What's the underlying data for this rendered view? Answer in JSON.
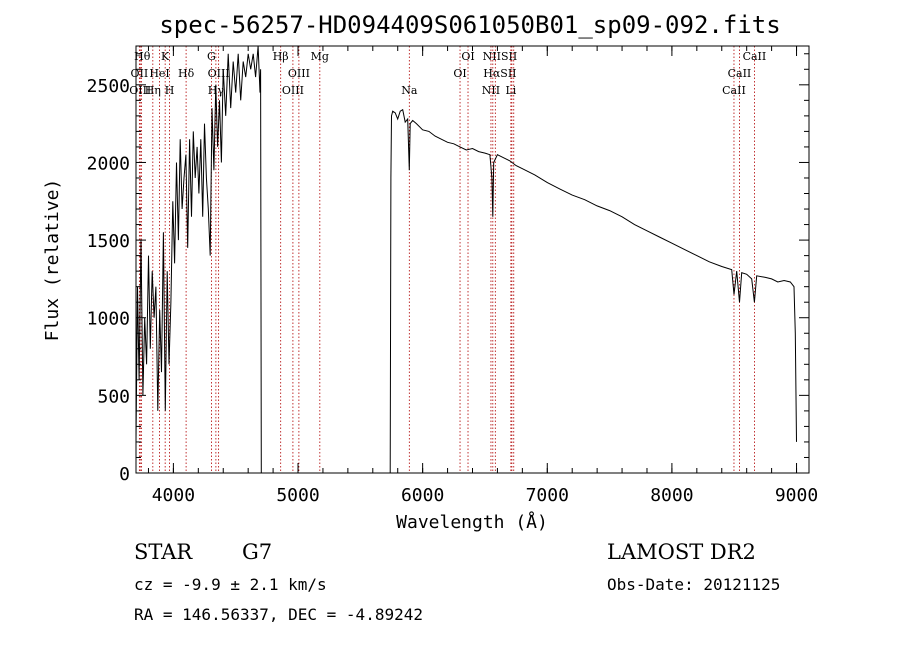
{
  "colors": {
    "spectrum": "#000000",
    "line_marker": "#b00000",
    "background": "#ffffff"
  },
  "chart_data": {
    "type": "line",
    "title": "spec-56257-HD094409S061050B01_sp09-092.fits",
    "xlabel": "Wavelength (Å)",
    "ylabel": "Flux (relative)",
    "xlim": [
      3700,
      9100
    ],
    "ylim": [
      0,
      2750
    ],
    "x_ticks": [
      "4000",
      "5000",
      "6000",
      "7000",
      "8000",
      "9000"
    ],
    "y_ticks": [
      "0",
      "500",
      "1000",
      "1500",
      "2000",
      "2500"
    ],
    "grid": false,
    "series": [
      {
        "x": [
          3700,
          3712,
          3725,
          3740,
          3755,
          3770,
          3785,
          3800,
          3815,
          3830,
          3845,
          3860,
          3875,
          3890,
          3905,
          3920,
          3935,
          3950,
          3965,
          3980,
          3995,
          4010,
          4025,
          4040,
          4055,
          4070,
          4085,
          4100,
          4115,
          4130,
          4145,
          4160,
          4175,
          4190,
          4205,
          4220,
          4235,
          4250,
          4265,
          4280,
          4295,
          4310,
          4325,
          4340,
          4355,
          4370,
          4385,
          4400,
          4420,
          4440,
          4460,
          4480,
          4500,
          4520,
          4540,
          4560,
          4580,
          4600,
          4620,
          4640,
          4660,
          4680,
          4695,
          4700,
          4705,
          5740,
          5745,
          5750,
          5760,
          5780,
          5800,
          5820,
          5840,
          5860,
          5880,
          5893,
          5900,
          5920,
          5950,
          6000,
          6050,
          6100,
          6150,
          6200,
          6250,
          6300,
          6350,
          6400,
          6450,
          6500,
          6540,
          6556,
          6563,
          6570,
          6600,
          6650,
          6700,
          6750,
          6800,
          6900,
          7000,
          7100,
          7200,
          7300,
          7400,
          7500,
          7600,
          7700,
          7800,
          7900,
          8000,
          8100,
          8200,
          8300,
          8400,
          8480,
          8498,
          8520,
          8542,
          8560,
          8600,
          8640,
          8662,
          8680,
          8750,
          8800,
          8850,
          8900,
          8950,
          8980,
          8990,
          9000
        ],
        "y": [
          200,
          1200,
          600,
          1500,
          500,
          1000,
          700,
          1400,
          800,
          1300,
          1000,
          1200,
          400,
          1050,
          650,
          1550,
          400,
          1300,
          700,
          1100,
          1750,
          1350,
          2000,
          1500,
          2150,
          1700,
          1900,
          2050,
          1450,
          2150,
          1650,
          2200,
          1900,
          2100,
          1800,
          2150,
          1650,
          2250,
          1900,
          1700,
          1400,
          2350,
          1950,
          2500,
          2100,
          2400,
          2000,
          2600,
          2300,
          2700,
          2350,
          2650,
          2450,
          2700,
          2400,
          2650,
          2550,
          2700,
          2600,
          2700,
          2550,
          2750,
          2450,
          2600,
          0,
          0,
          1900,
          2300,
          2330,
          2320,
          2280,
          2330,
          2340,
          2260,
          2280,
          1950,
          2250,
          2270,
          2250,
          2210,
          2200,
          2170,
          2150,
          2130,
          2120,
          2100,
          2080,
          2090,
          2070,
          2060,
          2050,
          1900,
          1650,
          2000,
          2050,
          2030,
          2010,
          1980,
          1960,
          1920,
          1870,
          1830,
          1790,
          1760,
          1720,
          1690,
          1650,
          1600,
          1560,
          1520,
          1480,
          1440,
          1400,
          1360,
          1330,
          1310,
          1150,
          1300,
          1100,
          1290,
          1280,
          1250,
          1100,
          1270,
          1260,
          1250,
          1230,
          1240,
          1230,
          1200,
          900,
          200
        ]
      }
    ],
    "lines": [
      {
        "upper": [
          "Hθ",
          "OII",
          "OIII"
        ],
        "wavelengths": [
          3727,
          3734,
          3745
        ]
      },
      {
        "upper": [
          "K",
          "HeI",
          "Hη"
        ],
        "wavelengths": [
          3934,
          3889,
          3835
        ]
      },
      {
        "upper": [
          "H"
        ],
        "wavelengths": [
          3969
        ]
      },
      {
        "upper": [
          "Hδ"
        ],
        "wavelengths": [
          4102
        ]
      },
      {
        "upper": [
          "G",
          "OIII",
          "Hγ"
        ],
        "wavelengths": [
          4305,
          4363,
          4341
        ]
      },
      {
        "upper": [
          "Hβ"
        ],
        "wavelengths": [
          4861
        ]
      },
      {
        "upper": [
          "OIII",
          "OIII"
        ],
        "wavelengths": [
          4959,
          5007
        ]
      },
      {
        "upper": [
          "Mg"
        ],
        "wavelengths": [
          5175
        ]
      },
      {
        "upper": [
          "Na"
        ],
        "wavelengths": [
          5893
        ]
      },
      {
        "upper": [
          "OI",
          "OI"
        ],
        "wavelengths": [
          6300,
          6364
        ]
      },
      {
        "upper": [
          "NII",
          "Hα",
          "NII"
        ],
        "wavelengths": [
          6548,
          6563,
          6583
        ]
      },
      {
        "upper": [
          "SII",
          "SII",
          "Li"
        ],
        "wavelengths": [
          6716,
          6731,
          6708
        ]
      },
      {
        "upper": [
          "CaII",
          "CaII",
          "CaII"
        ],
        "wavelengths": [
          8662,
          8542,
          8498
        ]
      }
    ],
    "line_labels": [
      {
        "text": "Hθ",
        "x": 3750,
        "row": 0
      },
      {
        "text": "K",
        "x": 3934,
        "row": 0
      },
      {
        "text": "G",
        "x": 4305,
        "row": 0
      },
      {
        "text": "Hβ",
        "x": 4861,
        "row": 0
      },
      {
        "text": "Mg",
        "x": 5175,
        "row": 0
      },
      {
        "text": "OI",
        "x": 6364,
        "row": 0
      },
      {
        "text": "NIISII",
        "x": 6620,
        "row": 0
      },
      {
        "text": "CaII",
        "x": 8662,
        "row": 0
      },
      {
        "text": "OII",
        "x": 3727,
        "row": 1
      },
      {
        "text": "HeI",
        "x": 3889,
        "row": 1
      },
      {
        "text": "Hδ",
        "x": 4102,
        "row": 1
      },
      {
        "text": "OIII",
        "x": 4363,
        "row": 1
      },
      {
        "text": "OIII",
        "x": 5007,
        "row": 1
      },
      {
        "text": "OI",
        "x": 6300,
        "row": 1
      },
      {
        "text": "HαSII",
        "x": 6620,
        "row": 1
      },
      {
        "text": "CaII",
        "x": 8542,
        "row": 1
      },
      {
        "text": "OIII",
        "x": 3734,
        "row": 2
      },
      {
        "text": "Hη",
        "x": 3835,
        "row": 2
      },
      {
        "text": "H",
        "x": 3969,
        "row": 2
      },
      {
        "text": "Hγ",
        "x": 4341,
        "row": 2
      },
      {
        "text": "OIII",
        "x": 4959,
        "row": 2
      },
      {
        "text": "Na",
        "x": 5893,
        "row": 2
      },
      {
        "text": "NII",
        "x": 6548,
        "row": 2
      },
      {
        "text": "Li",
        "x": 6708,
        "row": 2
      },
      {
        "text": "CaII",
        "x": 8498,
        "row": 2
      }
    ]
  },
  "info": {
    "class_label": "STAR",
    "subclass": "G7",
    "survey": "LAMOST DR2",
    "cz": "cz = -9.9 ± 2.1 km/s",
    "obs_date": "Obs-Date: 20121125",
    "radec": "RA = 146.56337, DEC =  -4.89242"
  }
}
